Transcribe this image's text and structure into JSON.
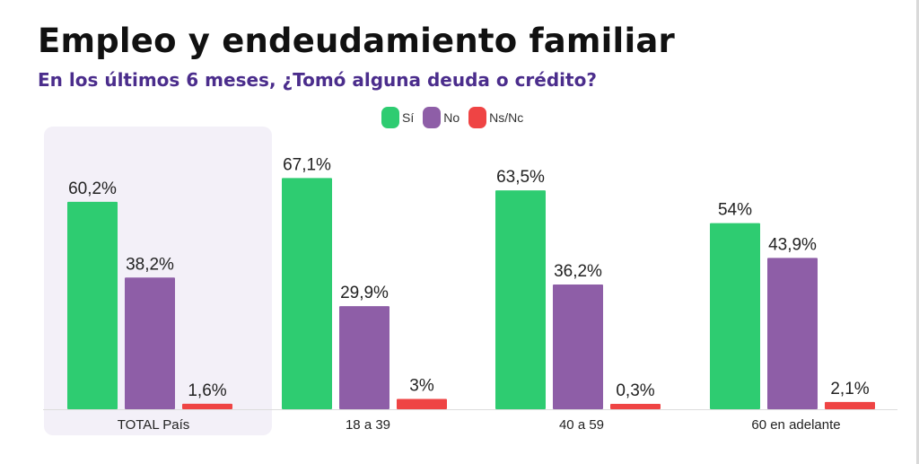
{
  "header": {
    "title": "Empleo y endeudamiento familiar",
    "subtitle": "En los últimos 6 meses, ¿Tomó alguna deuda o crédito?"
  },
  "colors": {
    "title": "#111111",
    "subtitle": "#4b2d8c",
    "highlight_group": "#f3f0f8",
    "baseline": "#dddddd"
  },
  "chart_data": {
    "type": "bar",
    "categories": [
      "TOTAL País",
      "18 a 39",
      "40 a 59",
      "60 en adelante"
    ],
    "highlighted_category": "TOTAL País",
    "series": [
      {
        "name": "Sí",
        "color": "#2ecc71",
        "values": [
          60.2,
          67.1,
          63.5,
          54
        ],
        "labels": [
          "60,2%",
          "67,1%",
          "63,5%",
          "54%"
        ]
      },
      {
        "name": "No",
        "color": "#8e5ea7",
        "values": [
          38.2,
          29.9,
          36.2,
          43.9
        ],
        "labels": [
          "38,2%",
          "29,9%",
          "36,2%",
          "43,9%"
        ]
      },
      {
        "name": "Ns/Nc",
        "color": "#ef4444",
        "values": [
          1.6,
          3,
          0.3,
          2.1
        ],
        "labels": [
          "1,6%",
          "3%",
          "0,3%",
          "2,1%"
        ]
      }
    ],
    "ylim": [
      0,
      100
    ],
    "grid": false,
    "legend_position": "top-center"
  }
}
